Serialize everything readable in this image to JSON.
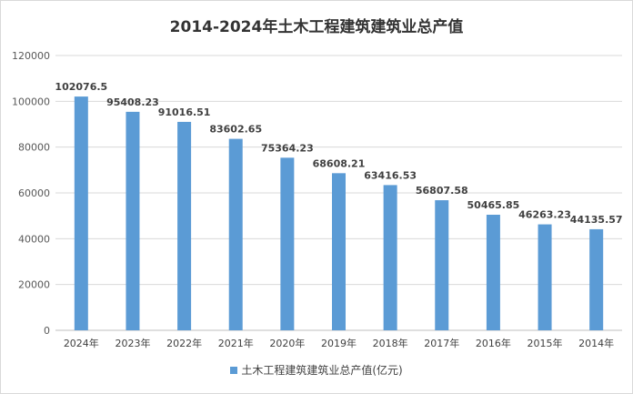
{
  "chart_data": {
    "type": "bar",
    "title": "2014-2024年土木工程建筑建筑业总产值",
    "categories": [
      "2024年",
      "2023年",
      "2022年",
      "2021年",
      "2020年",
      "2019年",
      "2018年",
      "2017年",
      "2016年",
      "2015年",
      "2014年"
    ],
    "series": [
      {
        "name": "土木工程建筑建筑业总产值(亿元)",
        "values": [
          102076.5,
          95408.23,
          91016.51,
          83602.65,
          75364.23,
          68608.21,
          63416.53,
          56807.58,
          50465.85,
          46263.23,
          44135.57
        ],
        "labels": [
          "102076.5",
          "95408.23",
          "91016.51",
          "83602.65",
          "75364.23",
          "68608.21",
          "63416.53",
          "56807.58",
          "50465.85",
          "46263.23",
          "44135.57"
        ]
      }
    ],
    "ylim": [
      0,
      120000
    ],
    "yticks": [
      0,
      20000,
      40000,
      60000,
      80000,
      100000,
      120000
    ],
    "grid": true,
    "legend_position": "bottom",
    "bar_color": "#5b9bd5"
  }
}
